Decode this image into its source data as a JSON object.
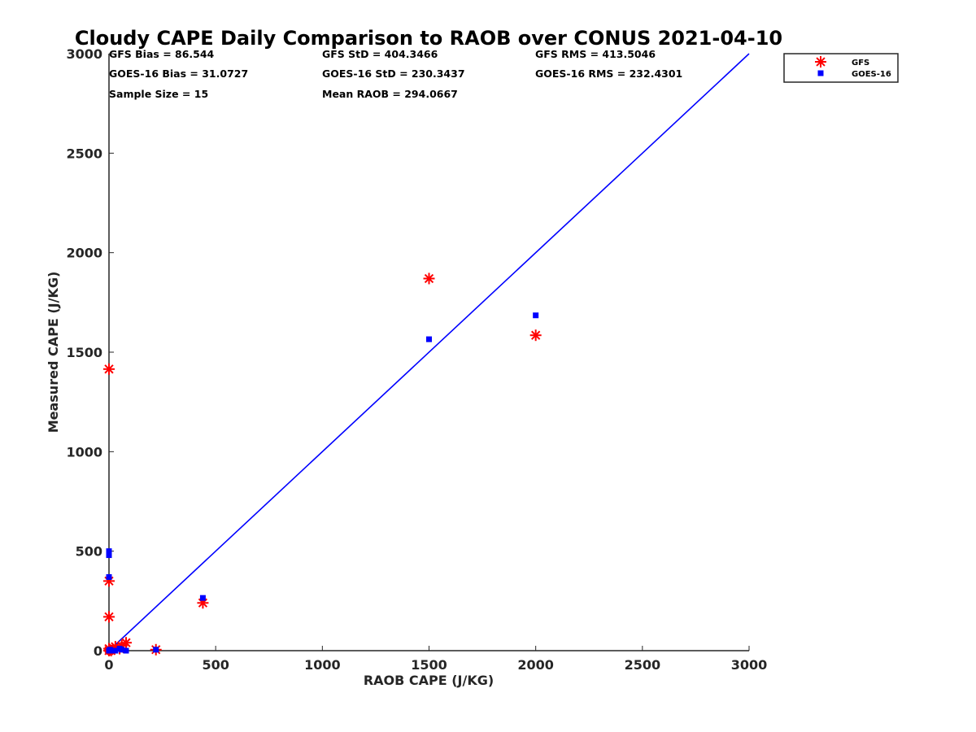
{
  "chart_data": {
    "type": "scatter",
    "title": "Cloudy CAPE Daily Comparison to RAOB over CONUS 2021-04-10",
    "xlabel": "RAOB CAPE (J/KG)",
    "ylabel": "Measured CAPE (J/KG)",
    "xlim": [
      0,
      3000
    ],
    "ylim": [
      0,
      3000
    ],
    "xticks": [
      0,
      500,
      1000,
      1500,
      2000,
      2500,
      3000
    ],
    "yticks": [
      0,
      500,
      1000,
      1500,
      2000,
      2500,
      3000
    ],
    "grid": false,
    "legend_position": "outside top-right",
    "stats": [
      "GFS Bias = 86.544",
      "GFS StD = 404.3466",
      "GFS RMS = 413.5046",
      "GOES-16 Bias = 31.0727",
      "GOES-16 StD = 230.3437",
      "GOES-16 RMS = 232.4301",
      "Sample Size = 15",
      "Mean RAOB = 294.0667"
    ],
    "reference_line": {
      "x": [
        0,
        3000
      ],
      "y": [
        0,
        3000
      ],
      "color": "#0000ff"
    },
    "series": [
      {
        "name": "GFS",
        "marker": "asterisk",
        "color": "#ff0000",
        "x": [
          0,
          0,
          0,
          0,
          0,
          5,
          10,
          30,
          50,
          60,
          80,
          220,
          440,
          1500,
          2000
        ],
        "y": [
          1415,
          350,
          170,
          10,
          0,
          5,
          0,
          20,
          10,
          25,
          40,
          5,
          240,
          1870,
          1585
        ]
      },
      {
        "name": "GOES-16",
        "marker": "square",
        "color": "#0000ff",
        "x": [
          0,
          0,
          0,
          0,
          5,
          10,
          30,
          50,
          60,
          80,
          220,
          440,
          1500,
          2000
        ],
        "y": [
          500,
          480,
          370,
          0,
          5,
          0,
          0,
          10,
          5,
          0,
          5,
          265,
          1565,
          1685
        ]
      }
    ]
  }
}
